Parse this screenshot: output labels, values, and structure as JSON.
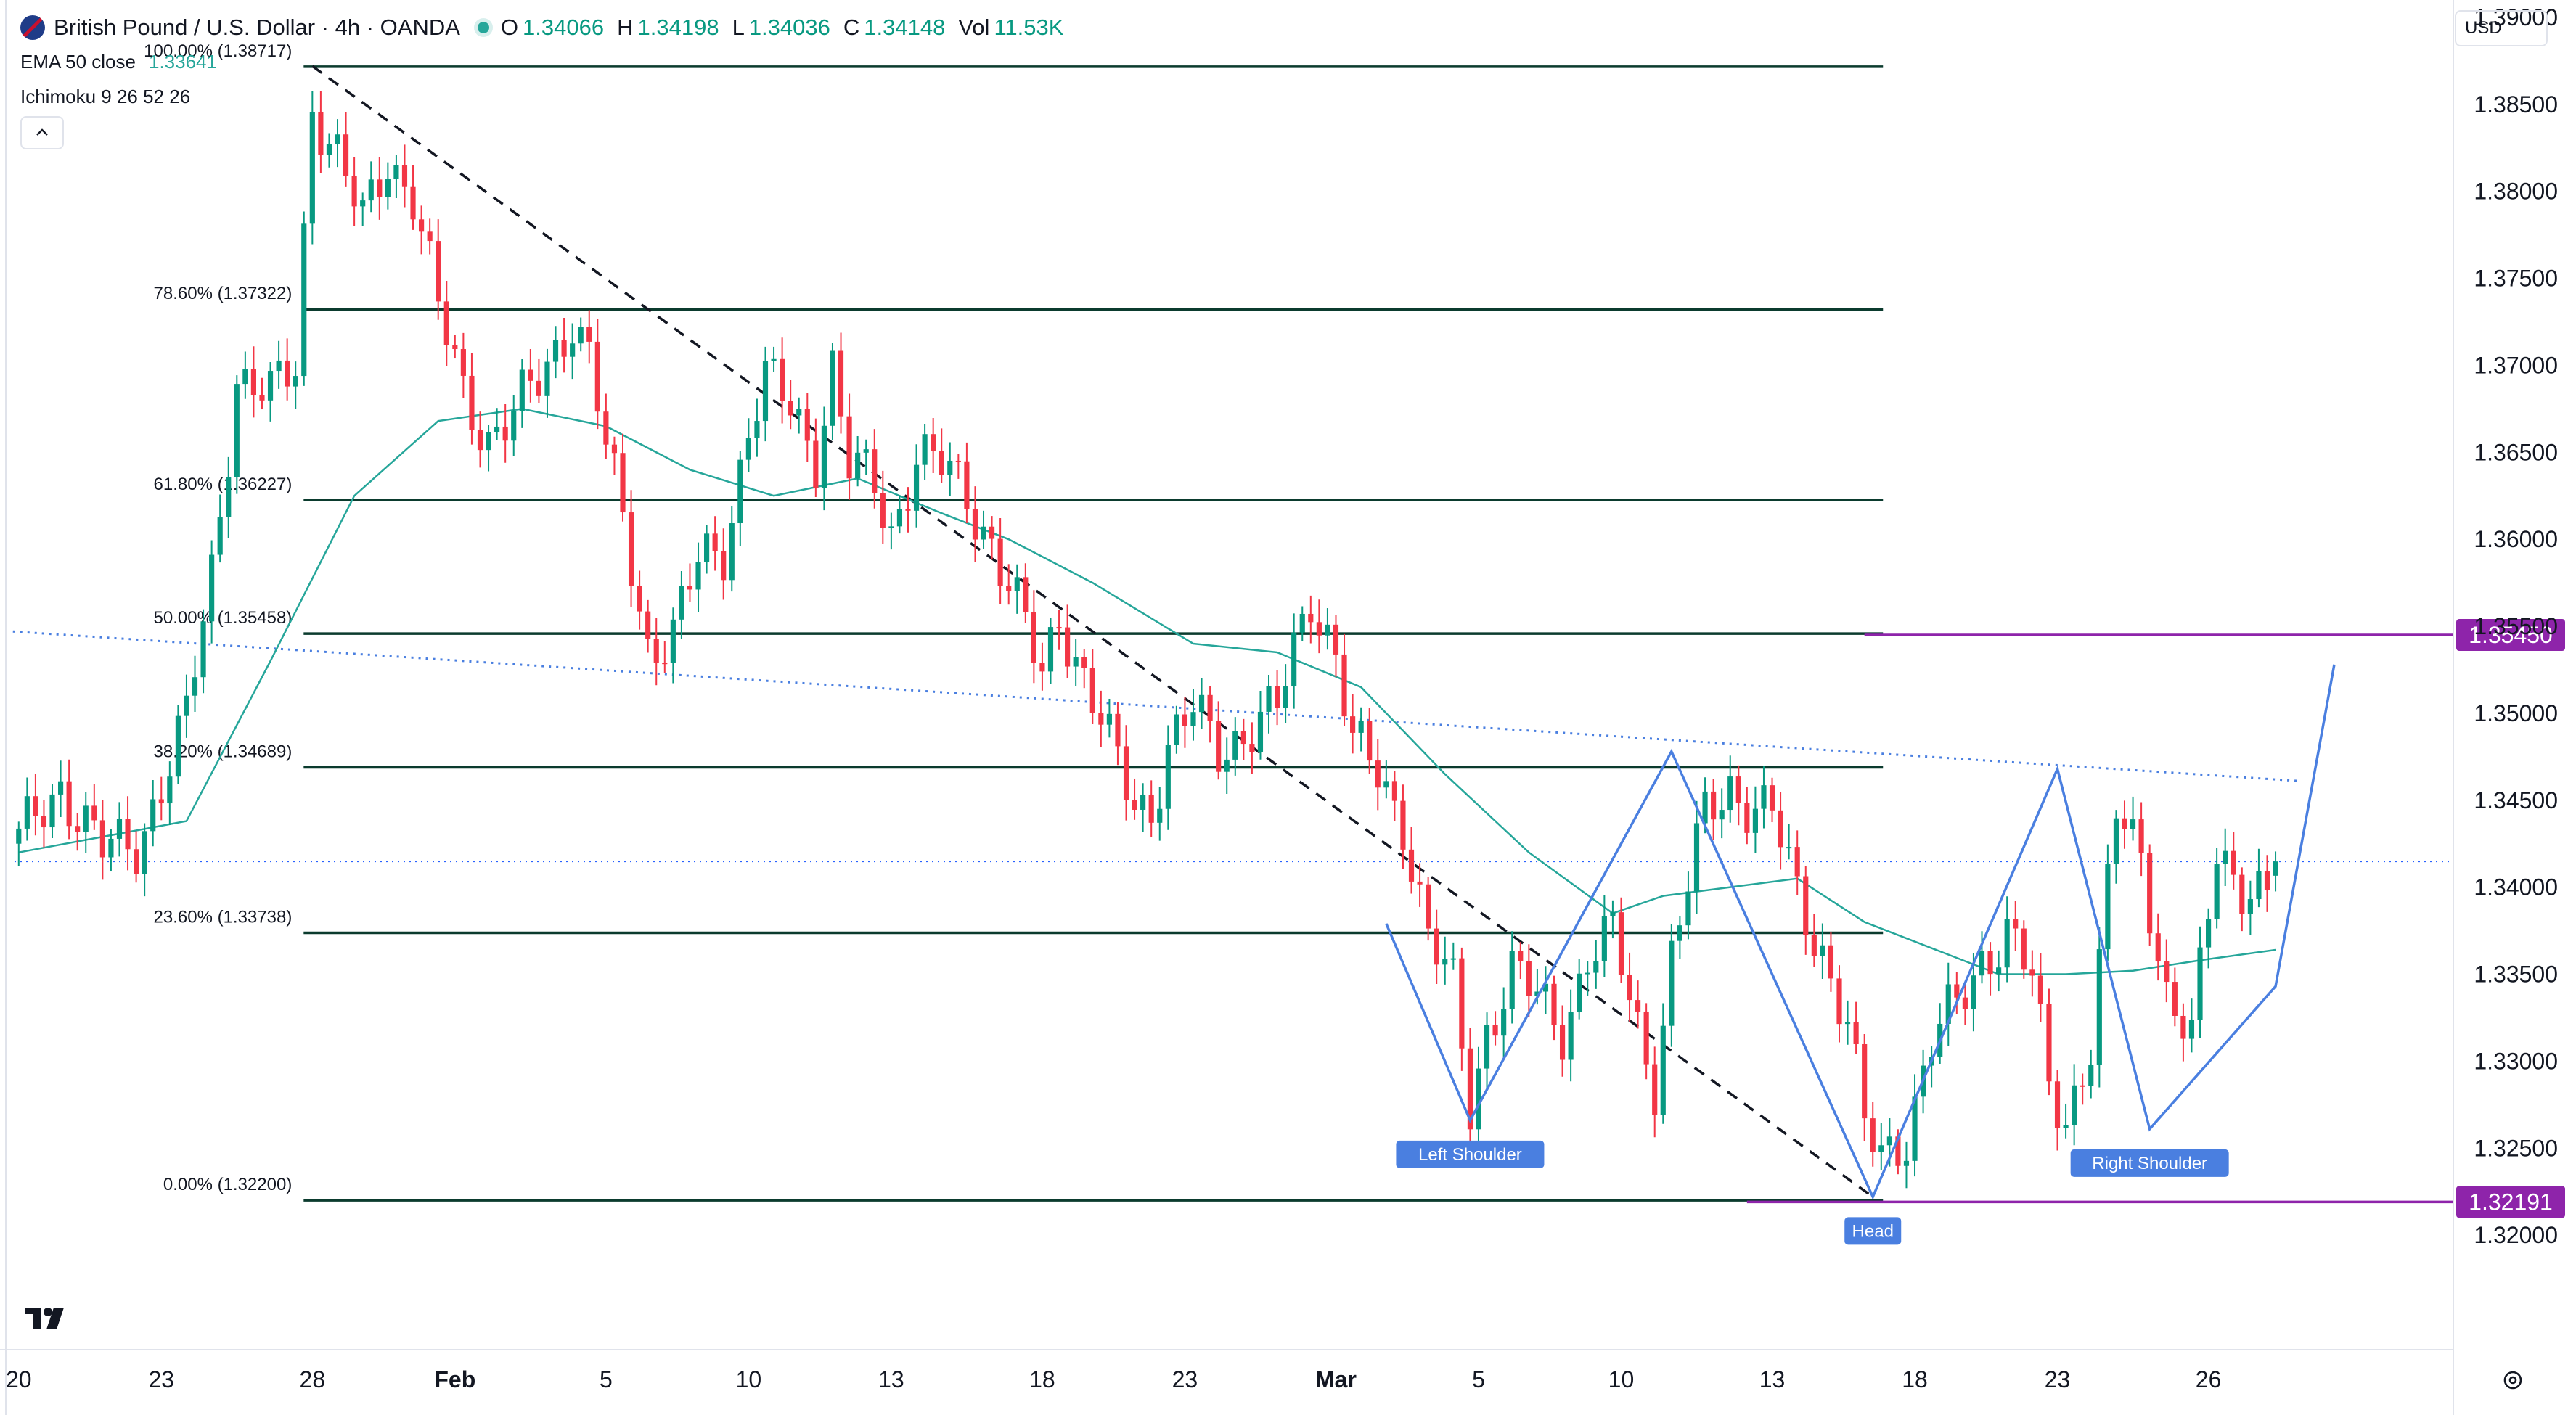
{
  "header": {
    "symbol": "British Pound / U.S. Dollar · 4h · OANDA",
    "o_label": "O",
    "o_value": "1.34066",
    "h_label": "H",
    "h_value": "1.34198",
    "l_label": "L",
    "l_value": "1.34036",
    "c_label": "C",
    "c_value": "1.34148",
    "vol_label": "Vol",
    "vol_value": "11.53K"
  },
  "indicators": {
    "ema_label": "EMA 50 close",
    "ema_value": "1.33641",
    "ichimoku_label": "Ichimoku 9 26 52 26"
  },
  "currency_button": "USD",
  "colors": {
    "up": "#089981",
    "down": "#f23645",
    "ema": "#26a69a",
    "fib": "#0b3b2e",
    "pattern": "#4a7fe0",
    "level": "#8e24aa",
    "cloud_bull": "#e4f3e8",
    "cloud_bear": "#fde3e3"
  },
  "icons": [
    "collapse-chevron-icon",
    "tradingview-logo-icon",
    "settings-gear-icon",
    "gbp-usd-flag-icon"
  ],
  "chart_data": {
    "type": "candlestick",
    "timeframe": "4h",
    "y_axis": {
      "range": [
        1.3155,
        1.391
      ],
      "tick_labels": [
        "1.39000",
        "1.38500",
        "1.38000",
        "1.37500",
        "1.37000",
        "1.36500",
        "1.36000",
        "1.35500",
        "1.35000",
        "1.34500",
        "1.34000",
        "1.33500",
        "1.33000",
        "1.32500",
        "1.32000"
      ]
    },
    "x_axis": {
      "tick_labels": [
        "20",
        "23",
        "28",
        "Feb",
        "5",
        "10",
        "13",
        "18",
        "23",
        "Mar",
        "5",
        "10",
        "13",
        "18",
        "23",
        "26"
      ],
      "tick_index": [
        0,
        17,
        35,
        52,
        70,
        87,
        104,
        122,
        139,
        157,
        174,
        191,
        209,
        226,
        243,
        261
      ]
    },
    "price_labels": [
      {
        "text": "1.35450",
        "value": 1.3545
      },
      {
        "text": "1.32191",
        "value": 1.32191
      }
    ],
    "last_price": 1.34148,
    "fibonacci": {
      "start_index": 35,
      "end_index": 221,
      "levels": [
        {
          "label": "100.00% (1.38717)",
          "value": 1.38717
        },
        {
          "label": "78.60% (1.37322)",
          "value": 1.37322
        },
        {
          "label": "61.80% (1.36227)",
          "value": 1.36227
        },
        {
          "label": "50.00% (1.35458)",
          "value": 1.35458
        },
        {
          "label": "38.20% (1.34689)",
          "value": 1.34689
        },
        {
          "label": "23.60% (1.33738)",
          "value": 1.33738
        },
        {
          "label": "0.00% (1.32200)",
          "value": 1.322
        }
      ]
    },
    "horizontal_levels": [
      {
        "value": 1.3545,
        "from_index": 220,
        "to_index": 283
      },
      {
        "value": 1.32191,
        "from_index": 206,
        "to_index": 283
      }
    ],
    "dotted_trendline": [
      [
        0,
        1.3547
      ],
      [
        272,
        1.3461
      ]
    ],
    "dashed_trendline": [
      [
        35,
        1.3872
      ],
      [
        221,
        1.3222
      ]
    ],
    "head_and_shoulders": {
      "points": [
        [
          163,
          1.3379
        ],
        [
          173,
          1.3266
        ],
        [
          197,
          1.3478
        ],
        [
          221,
          1.3222
        ],
        [
          243,
          1.3468
        ],
        [
          254,
          1.3261
        ],
        [
          269,
          1.3343
        ],
        [
          276,
          1.3528
        ]
      ],
      "labels": [
        {
          "text": "Left Shoulder",
          "index": 173,
          "value": 1.3266
        },
        {
          "text": "Head",
          "index": 221,
          "value": 1.3222
        },
        {
          "text": "Right Shoulder",
          "index": 254,
          "value": 1.3261
        }
      ]
    },
    "anchors": [
      [
        0,
        1.3425
      ],
      [
        5,
        1.346
      ],
      [
        10,
        1.342
      ],
      [
        14,
        1.3425
      ],
      [
        20,
        1.3495
      ],
      [
        23,
        1.358
      ],
      [
        26,
        1.3695
      ],
      [
        30,
        1.368
      ],
      [
        33,
        1.37
      ],
      [
        35,
        1.3852
      ],
      [
        38,
        1.382
      ],
      [
        41,
        1.378
      ],
      [
        44,
        1.382
      ],
      [
        47,
        1.38
      ],
      [
        50,
        1.373
      ],
      [
        53,
        1.3685
      ],
      [
        56,
        1.366
      ],
      [
        59,
        1.367
      ],
      [
        62,
        1.369
      ],
      [
        66,
        1.373
      ],
      [
        68,
        1.3705
      ],
      [
        70,
        1.365
      ],
      [
        72,
        1.361
      ],
      [
        75,
        1.354
      ],
      [
        78,
        1.3545
      ],
      [
        81,
        1.3585
      ],
      [
        84,
        1.3595
      ],
      [
        87,
        1.3665
      ],
      [
        89,
        1.369
      ],
      [
        92,
        1.3675
      ],
      [
        95,
        1.365
      ],
      [
        97,
        1.37
      ],
      [
        99,
        1.364
      ],
      [
        102,
        1.363
      ],
      [
        104,
        1.3605
      ],
      [
        107,
        1.365
      ],
      [
        110,
        1.364
      ],
      [
        113,
        1.3625
      ],
      [
        116,
        1.36
      ],
      [
        119,
        1.356
      ],
      [
        122,
        1.352
      ],
      [
        124,
        1.356
      ],
      [
        127,
        1.352
      ],
      [
        130,
        1.348
      ],
      [
        133,
        1.3448
      ],
      [
        135,
        1.3448
      ],
      [
        137,
        1.348
      ],
      [
        140,
        1.35
      ],
      [
        143,
        1.348
      ],
      [
        146,
        1.349
      ],
      [
        150,
        1.35
      ],
      [
        154,
        1.357
      ],
      [
        157,
        1.3535
      ],
      [
        159,
        1.348
      ],
      [
        162,
        1.3465
      ],
      [
        165,
        1.344
      ],
      [
        168,
        1.337
      ],
      [
        171,
        1.334
      ],
      [
        173,
        1.3275
      ],
      [
        175,
        1.332
      ],
      [
        178,
        1.335
      ],
      [
        181,
        1.3335
      ],
      [
        184,
        1.332
      ],
      [
        187,
        1.336
      ],
      [
        190,
        1.337
      ],
      [
        193,
        1.332
      ],
      [
        195,
        1.329
      ],
      [
        197,
        1.336
      ],
      [
        199,
        1.34
      ],
      [
        201,
        1.344
      ],
      [
        204,
        1.346
      ],
      [
        206,
        1.345
      ],
      [
        209,
        1.344
      ],
      [
        212,
        1.3395
      ],
      [
        215,
        1.3365
      ],
      [
        218,
        1.332
      ],
      [
        220,
        1.326
      ],
      [
        222,
        1.3245
      ],
      [
        225,
        1.326
      ],
      [
        228,
        1.331
      ],
      [
        231,
        1.333
      ],
      [
        234,
        1.336
      ],
      [
        237,
        1.3375
      ],
      [
        240,
        1.3345
      ],
      [
        242,
        1.3285
      ],
      [
        244,
        1.327
      ],
      [
        247,
        1.331
      ],
      [
        250,
        1.344
      ],
      [
        253,
        1.342
      ],
      [
        256,
        1.334
      ],
      [
        259,
        1.331
      ],
      [
        262,
        1.342
      ],
      [
        265,
        1.3405
      ],
      [
        268,
        1.3395
      ],
      [
        269,
        1.3415
      ]
    ],
    "ema_50": [
      [
        0,
        1.342
      ],
      [
        20,
        1.3438
      ],
      [
        30,
        1.353
      ],
      [
        40,
        1.3625
      ],
      [
        50,
        1.3668
      ],
      [
        60,
        1.3675
      ],
      [
        70,
        1.3665
      ],
      [
        80,
        1.364
      ],
      [
        90,
        1.3625
      ],
      [
        100,
        1.3635
      ],
      [
        110,
        1.3615
      ],
      [
        118,
        1.36
      ],
      [
        128,
        1.3575
      ],
      [
        140,
        1.354
      ],
      [
        150,
        1.3535
      ],
      [
        160,
        1.3515
      ],
      [
        170,
        1.3465
      ],
      [
        180,
        1.342
      ],
      [
        190,
        1.3385
      ],
      [
        196,
        1.3395
      ],
      [
        204,
        1.34
      ],
      [
        212,
        1.3405
      ],
      [
        220,
        1.338
      ],
      [
        228,
        1.3365
      ],
      [
        236,
        1.335
      ],
      [
        244,
        1.335
      ],
      [
        252,
        1.3352
      ],
      [
        260,
        1.3358
      ],
      [
        269,
        1.3364
      ]
    ],
    "ichimoku_cloud": [
      {
        "from_index": 0,
        "to_index": 30,
        "upper": [
          1.3445,
          1.345,
          1.344,
          1.3455,
          1.343,
          1.342,
          1.342
        ],
        "lower": [
          1.342,
          1.342,
          1.3415,
          1.341,
          1.3415,
          1.3415,
          1.3418
        ],
        "trend": "bearish"
      },
      {
        "from_index": 30,
        "to_index": 52,
        "upper": [
          1.343,
          1.345,
          1.35,
          1.358,
          1.362,
          1.365
        ],
        "lower": [
          1.3418,
          1.342,
          1.343,
          1.3435,
          1.348,
          1.352
        ],
        "trend": "bullish"
      },
      {
        "from_index": 52,
        "to_index": 105,
        "upper": [
          1.365,
          1.368,
          1.372,
          1.374,
          1.374,
          1.372,
          1.37,
          1.368
        ],
        "lower": [
          1.352,
          1.36,
          1.362,
          1.362,
          1.363,
          1.364,
          1.363,
          1.3625
        ],
        "trend": "bullish"
      },
      {
        "from_index": 105,
        "to_index": 205,
        "upper": [
          1.369,
          1.37,
          1.367,
          1.361,
          1.358,
          1.356,
          1.353,
          1.35,
          1.347,
          1.344,
          1.342
        ],
        "lower": [
          1.364,
          1.363,
          1.362,
          1.358,
          1.356,
          1.3525,
          1.349,
          1.344,
          1.34,
          1.3395,
          1.3395
        ],
        "trend": "bearish"
      },
      {
        "from_index": 205,
        "to_index": 226,
        "upper": [
          1.342,
          1.341,
          1.34,
          1.3405
        ],
        "lower": [
          1.3395,
          1.336,
          1.334,
          1.333
        ],
        "trend": "bearish"
      },
      {
        "from_index": 226,
        "to_index": 245,
        "upper": [
          1.3405,
          1.3395,
          1.3375
        ],
        "lower": [
          1.337,
          1.337,
          1.3365
        ],
        "trend": "bullish"
      },
      {
        "from_index": 245,
        "to_index": 270,
        "upper": [
          1.335,
          1.3345,
          1.334,
          1.335
        ],
        "lower": [
          1.333,
          1.331,
          1.33,
          1.3305
        ],
        "trend": "bearish"
      },
      {
        "from_index": 270,
        "to_index": 287,
        "upper": [
          1.3355,
          1.336,
          1.337,
          1.338,
          1.339
        ],
        "lower": [
          1.335,
          1.3348,
          1.335,
          1.335,
          1.3355
        ],
        "trend": "bullish"
      }
    ]
  }
}
